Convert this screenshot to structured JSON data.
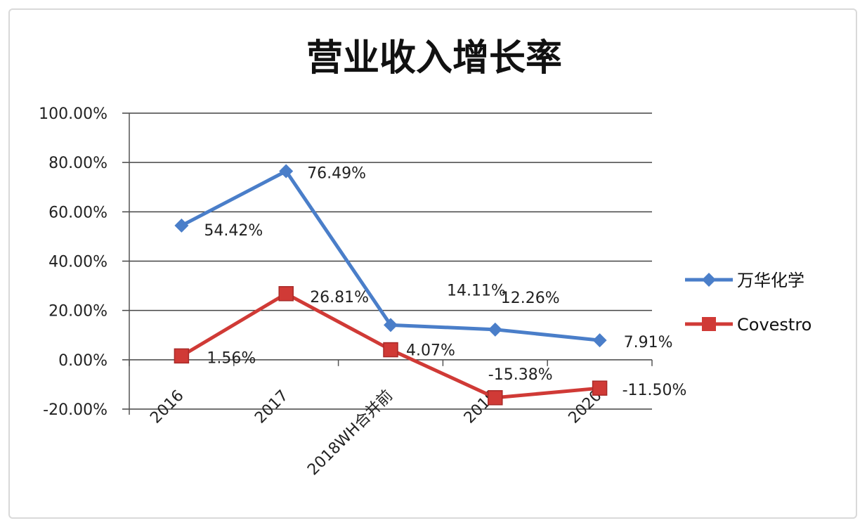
{
  "chart_data": {
    "type": "line",
    "title": "营业收入增长率",
    "xlabel": "",
    "ylabel": "",
    "categories": [
      "2016",
      "2017",
      "2018WH合并前",
      "2019",
      "2020"
    ],
    "ylim": [
      -0.2,
      1.0
    ],
    "yticks": [
      -0.2,
      0,
      0.2,
      0.4,
      0.6,
      0.8,
      1.0
    ],
    "ytick_labels": [
      "-20.00%",
      "0.00%",
      "20.00%",
      "40.00%",
      "60.00%",
      "80.00%",
      "100.00%"
    ],
    "grid": true,
    "legend_position": "right",
    "series": [
      {
        "name": "万华化学",
        "color": "#4a7ec9",
        "marker": "diamond",
        "values": [
          0.5442,
          0.7649,
          0.1411,
          0.1226,
          0.0791
        ],
        "labels": [
          "54.42%",
          "76.49%",
          "14.11%",
          "12.26%",
          "7.91%"
        ]
      },
      {
        "name": "Covestro",
        "color": "#d03a36",
        "marker": "square",
        "values": [
          0.0156,
          0.2681,
          0.0407,
          -0.1538,
          -0.115
        ],
        "labels": [
          "1.56%",
          "26.81%",
          "4.07%",
          "-15.38%",
          "-11.50%"
        ]
      }
    ]
  }
}
